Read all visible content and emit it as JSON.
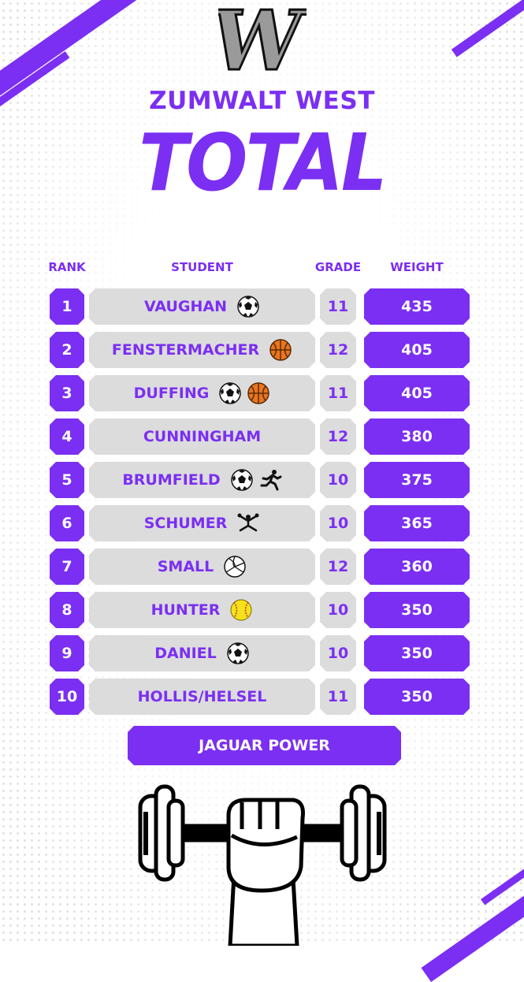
{
  "colors": {
    "accent": "#7b2ff2",
    "row_gray": "#dcdcdc",
    "logo_gray": "#9a9a9a"
  },
  "header": {
    "logo_letter": "W",
    "school": "ZUMWALT WEST",
    "title": "TOTAL"
  },
  "columns": {
    "rank": "RANK",
    "student": "STUDENT",
    "grade": "GRADE",
    "weight": "WEIGHT"
  },
  "rows": [
    {
      "rank": "1",
      "student": "VAUGHAN",
      "grade": "11",
      "weight": "435",
      "icons": [
        "soccer-ball"
      ]
    },
    {
      "rank": "2",
      "student": "FENSTERMACHER",
      "grade": "12",
      "weight": "405",
      "icons": [
        "basketball"
      ]
    },
    {
      "rank": "3",
      "student": "DUFFING",
      "grade": "11",
      "weight": "405",
      "icons": [
        "soccer-ball",
        "basketball"
      ]
    },
    {
      "rank": "4",
      "student": "CUNNINGHAM",
      "grade": "12",
      "weight": "380",
      "icons": []
    },
    {
      "rank": "5",
      "student": "BRUMFIELD",
      "grade": "10",
      "weight": "375",
      "icons": [
        "soccer-ball",
        "runner"
      ]
    },
    {
      "rank": "6",
      "student": "SCHUMER",
      "grade": "10",
      "weight": "365",
      "icons": [
        "cheerleader"
      ]
    },
    {
      "rank": "7",
      "student": "SMALL",
      "grade": "12",
      "weight": "360",
      "icons": [
        "volleyball"
      ]
    },
    {
      "rank": "8",
      "student": "HUNTER",
      "grade": "10",
      "weight": "350",
      "icons": [
        "softball"
      ]
    },
    {
      "rank": "9",
      "student": "DANIEL",
      "grade": "10",
      "weight": "350",
      "icons": [
        "soccer-ball"
      ]
    },
    {
      "rank": "10",
      "student": "HOLLIS/HELSEL",
      "grade": "11",
      "weight": "350",
      "icons": []
    }
  ],
  "footer": {
    "button_label": "JAGUAR POWER",
    "illustration": "dumbbell-fist-icon"
  }
}
